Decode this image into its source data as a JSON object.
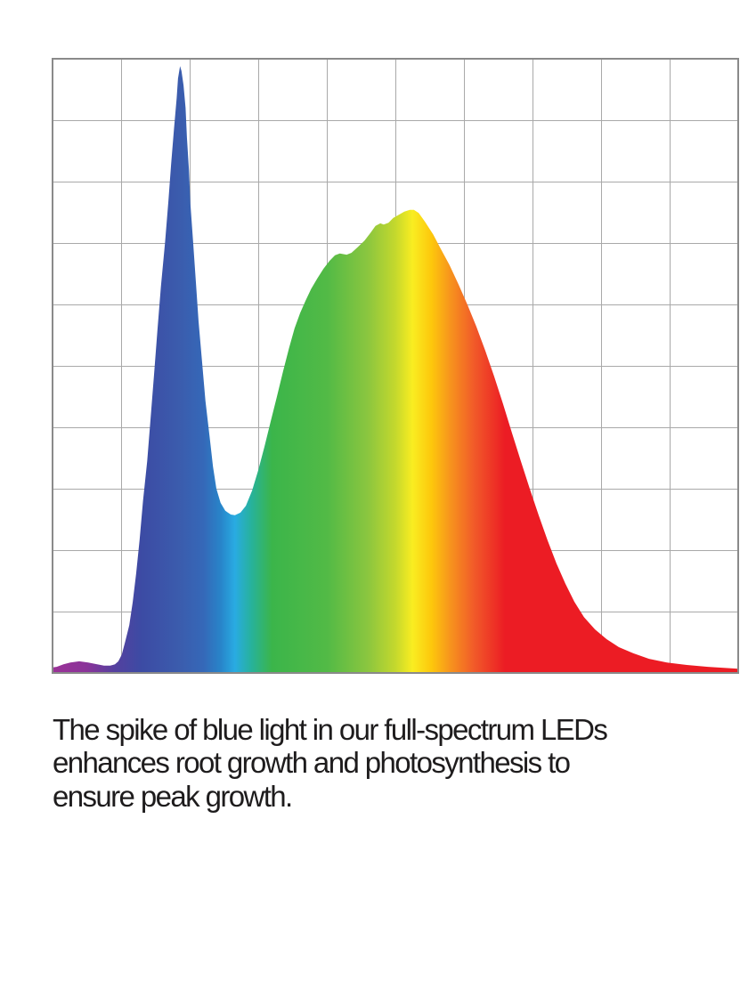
{
  "page": {
    "background": "#ffffff"
  },
  "caption": {
    "lines": [
      "The spike of blue light in our full-spectrum LEDs",
      "enhances root growth and photosynthesis to",
      "ensure peak growth."
    ],
    "color": "#1e1c1d"
  },
  "chart_data": {
    "type": "area",
    "title": "",
    "xlabel": "",
    "ylabel": "",
    "axis_tick_labels_visible": false,
    "x_axis_implied": "wavelength, violet (left) to deep red (right)",
    "y_axis_implied": "relative spectral intensity (0 bottom to 1 top)",
    "legend": "none",
    "grid": {
      "cols": 10,
      "rows": 10,
      "line_color": "#a9a9a9",
      "border_color": "#8a8a8a",
      "grid_on": true
    },
    "series_name": "full-spectrum LED output",
    "features": {
      "blue_spike": {
        "x_norm": 0.186,
        "peak_intensity": 0.99
      },
      "valley": {
        "x_norm": 0.266,
        "intensity": 0.26
      },
      "broad_green_yellow_peak": {
        "x_norm": 0.525,
        "peak_intensity": 0.75
      },
      "red_tail_end_intensity": 0.007
    },
    "points_norm": [
      [
        0.0,
        0.009
      ],
      [
        0.006,
        0.01
      ],
      [
        0.016,
        0.014
      ],
      [
        0.026,
        0.017
      ],
      [
        0.039,
        0.019
      ],
      [
        0.052,
        0.017
      ],
      [
        0.065,
        0.014
      ],
      [
        0.075,
        0.012
      ],
      [
        0.084,
        0.012
      ],
      [
        0.091,
        0.014
      ],
      [
        0.096,
        0.019
      ],
      [
        0.101,
        0.03
      ],
      [
        0.106,
        0.051
      ],
      [
        0.112,
        0.078
      ],
      [
        0.117,
        0.116
      ],
      [
        0.122,
        0.162
      ],
      [
        0.127,
        0.217
      ],
      [
        0.132,
        0.28
      ],
      [
        0.138,
        0.345
      ],
      [
        0.143,
        0.414
      ],
      [
        0.148,
        0.486
      ],
      [
        0.153,
        0.558
      ],
      [
        0.158,
        0.629
      ],
      [
        0.164,
        0.7
      ],
      [
        0.169,
        0.768
      ],
      [
        0.173,
        0.829
      ],
      [
        0.177,
        0.884
      ],
      [
        0.181,
        0.936
      ],
      [
        0.183,
        0.968
      ],
      [
        0.186,
        0.988
      ],
      [
        0.188,
        0.98
      ],
      [
        0.191,
        0.957
      ],
      [
        0.194,
        0.92
      ],
      [
        0.196,
        0.872
      ],
      [
        0.199,
        0.819
      ],
      [
        0.201,
        0.764
      ],
      [
        0.205,
        0.703
      ],
      [
        0.209,
        0.638
      ],
      [
        0.213,
        0.572
      ],
      [
        0.218,
        0.507
      ],
      [
        0.223,
        0.443
      ],
      [
        0.229,
        0.386
      ],
      [
        0.234,
        0.336
      ],
      [
        0.239,
        0.3
      ],
      [
        0.245,
        0.277
      ],
      [
        0.252,
        0.264
      ],
      [
        0.26,
        0.258
      ],
      [
        0.266,
        0.257
      ],
      [
        0.274,
        0.261
      ],
      [
        0.282,
        0.272
      ],
      [
        0.291,
        0.297
      ],
      [
        0.3,
        0.33
      ],
      [
        0.309,
        0.368
      ],
      [
        0.318,
        0.409
      ],
      [
        0.327,
        0.449
      ],
      [
        0.336,
        0.49
      ],
      [
        0.345,
        0.529
      ],
      [
        0.353,
        0.561
      ],
      [
        0.361,
        0.586
      ],
      [
        0.369,
        0.606
      ],
      [
        0.377,
        0.625
      ],
      [
        0.386,
        0.642
      ],
      [
        0.395,
        0.658
      ],
      [
        0.404,
        0.671
      ],
      [
        0.412,
        0.68
      ],
      [
        0.419,
        0.683
      ],
      [
        0.429,
        0.681
      ],
      [
        0.436,
        0.684
      ],
      [
        0.445,
        0.693
      ],
      [
        0.455,
        0.704
      ],
      [
        0.464,
        0.717
      ],
      [
        0.471,
        0.728
      ],
      [
        0.478,
        0.732
      ],
      [
        0.483,
        0.73
      ],
      [
        0.49,
        0.733
      ],
      [
        0.497,
        0.741
      ],
      [
        0.505,
        0.746
      ],
      [
        0.513,
        0.751
      ],
      [
        0.521,
        0.754
      ],
      [
        0.527,
        0.754
      ],
      [
        0.534,
        0.749
      ],
      [
        0.543,
        0.735
      ],
      [
        0.555,
        0.714
      ],
      [
        0.566,
        0.691
      ],
      [
        0.579,
        0.664
      ],
      [
        0.592,
        0.633
      ],
      [
        0.605,
        0.6
      ],
      [
        0.618,
        0.564
      ],
      [
        0.631,
        0.525
      ],
      [
        0.644,
        0.483
      ],
      [
        0.657,
        0.438
      ],
      [
        0.67,
        0.391
      ],
      [
        0.683,
        0.345
      ],
      [
        0.696,
        0.3
      ],
      [
        0.709,
        0.257
      ],
      [
        0.722,
        0.216
      ],
      [
        0.735,
        0.178
      ],
      [
        0.748,
        0.145
      ],
      [
        0.761,
        0.116
      ],
      [
        0.775,
        0.091
      ],
      [
        0.791,
        0.071
      ],
      [
        0.808,
        0.055
      ],
      [
        0.826,
        0.042
      ],
      [
        0.847,
        0.032
      ],
      [
        0.87,
        0.023
      ],
      [
        0.896,
        0.017
      ],
      [
        0.925,
        0.013
      ],
      [
        0.956,
        0.01
      ],
      [
        1.0,
        0.007
      ]
    ],
    "gradient_stops": [
      [
        0.0,
        "#9B3297"
      ],
      [
        0.05,
        "#8A3399"
      ],
      [
        0.09,
        "#55409F"
      ],
      [
        0.13,
        "#3C4BA4"
      ],
      [
        0.185,
        "#3B5CAD"
      ],
      [
        0.22,
        "#3568B8"
      ],
      [
        0.245,
        "#2884C9"
      ],
      [
        0.266,
        "#29ABE2"
      ],
      [
        0.29,
        "#27B29B"
      ],
      [
        0.32,
        "#3BB54A"
      ],
      [
        0.4,
        "#52BA46"
      ],
      [
        0.46,
        "#8BC63F"
      ],
      [
        0.5,
        "#C4D82D"
      ],
      [
        0.525,
        "#F9ED21"
      ],
      [
        0.553,
        "#FDC70C"
      ],
      [
        0.58,
        "#F7941D"
      ],
      [
        0.615,
        "#F15A29"
      ],
      [
        0.66,
        "#EC1C24"
      ],
      [
        1.0,
        "#EC1C24"
      ]
    ]
  }
}
